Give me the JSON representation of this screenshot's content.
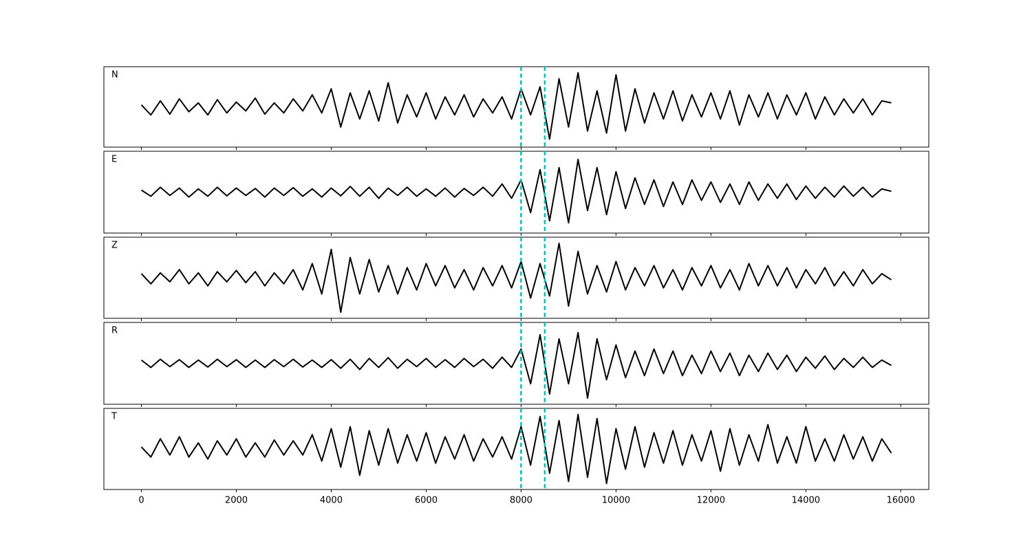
{
  "chart_data": {
    "type": "line",
    "x": [
      0,
      200,
      400,
      600,
      800,
      1000,
      1200,
      1400,
      1600,
      1800,
      2000,
      2200,
      2400,
      2600,
      2800,
      3000,
      3200,
      3400,
      3600,
      3800,
      4000,
      4200,
      4400,
      4600,
      4800,
      5000,
      5200,
      5400,
      5600,
      5800,
      6000,
      6200,
      6400,
      6600,
      6800,
      7000,
      7200,
      7400,
      7600,
      7800,
      8000,
      8200,
      8400,
      8600,
      8800,
      9000,
      9200,
      9400,
      9600,
      9800,
      10000,
      10200,
      10400,
      10600,
      10800,
      11000,
      11200,
      11400,
      11600,
      11800,
      12000,
      12200,
      12400,
      12600,
      12800,
      13000,
      13200,
      13400,
      13600,
      13800,
      14000,
      14200,
      14400,
      14600,
      14800,
      15000,
      15200,
      15400,
      15600,
      15800
    ],
    "xlim": [
      -790,
      16590
    ],
    "xticks": [
      0,
      2000,
      4000,
      6000,
      8000,
      10000,
      12000,
      14000,
      16000
    ],
    "ylim": [
      -1,
      1
    ],
    "series": [
      {
        "name": "N",
        "color": "#000000",
        "values": [
          0.05,
          -0.2,
          0.15,
          -0.18,
          0.2,
          -0.12,
          0.1,
          -0.2,
          0.18,
          -0.15,
          0.12,
          -0.1,
          0.22,
          -0.18,
          0.1,
          -0.15,
          0.2,
          -0.1,
          0.3,
          -0.15,
          0.45,
          -0.5,
          0.35,
          -0.3,
          0.4,
          -0.35,
          0.6,
          -0.4,
          0.3,
          -0.25,
          0.35,
          -0.3,
          0.25,
          -0.2,
          0.3,
          -0.25,
          0.2,
          -0.15,
          0.25,
          -0.3,
          0.45,
          -0.2,
          0.5,
          -0.8,
          0.7,
          -0.5,
          0.85,
          -0.6,
          0.4,
          -0.65,
          0.8,
          -0.6,
          0.45,
          -0.4,
          0.35,
          -0.3,
          0.4,
          -0.35,
          0.3,
          -0.25,
          0.35,
          -0.3,
          0.4,
          -0.45,
          0.3,
          -0.25,
          0.35,
          -0.3,
          0.3,
          -0.2,
          0.35,
          -0.3,
          0.25,
          -0.2,
          0.2,
          -0.15,
          0.2,
          -0.2,
          0.15,
          0.1
        ]
      },
      {
        "name": "E",
        "color": "#000000",
        "values": [
          0.05,
          -0.1,
          0.12,
          -0.08,
          0.1,
          -0.12,
          0.08,
          -0.1,
          0.12,
          -0.09,
          0.1,
          -0.08,
          0.09,
          -0.12,
          0.1,
          -0.08,
          0.11,
          -0.1,
          0.08,
          -0.12,
          0.1,
          -0.09,
          0.14,
          -0.1,
          0.12,
          -0.15,
          0.1,
          -0.08,
          0.12,
          -0.1,
          0.08,
          -0.1,
          0.1,
          -0.12,
          0.09,
          -0.08,
          0.12,
          -0.1,
          0.2,
          -0.15,
          0.3,
          -0.5,
          0.55,
          -0.7,
          0.6,
          -0.75,
          0.8,
          -0.45,
          0.6,
          -0.55,
          0.5,
          -0.4,
          0.35,
          -0.3,
          0.3,
          -0.35,
          0.25,
          -0.3,
          0.3,
          -0.2,
          0.25,
          -0.25,
          0.2,
          -0.3,
          0.25,
          -0.2,
          0.2,
          -0.15,
          0.2,
          -0.18,
          0.15,
          -0.15,
          0.12,
          -0.12,
          0.15,
          -0.1,
          0.12,
          -0.12,
          0.08,
          0.02
        ]
      },
      {
        "name": "Z",
        "color": "#000000",
        "values": [
          0.1,
          -0.15,
          0.12,
          -0.1,
          0.2,
          -0.15,
          0.12,
          -0.2,
          0.15,
          -0.1,
          0.18,
          -0.12,
          0.15,
          -0.2,
          0.12,
          -0.15,
          0.2,
          -0.3,
          0.35,
          -0.4,
          0.7,
          -0.85,
          0.5,
          -0.4,
          0.45,
          -0.35,
          0.3,
          -0.4,
          0.25,
          -0.3,
          0.35,
          -0.2,
          0.3,
          -0.25,
          0.2,
          -0.3,
          0.25,
          -0.2,
          0.3,
          -0.25,
          0.4,
          -0.5,
          0.35,
          -0.45,
          0.85,
          -0.7,
          0.65,
          -0.4,
          0.3,
          -0.35,
          0.4,
          -0.3,
          0.25,
          -0.2,
          0.3,
          -0.25,
          0.2,
          -0.3,
          0.25,
          -0.2,
          0.3,
          -0.25,
          0.2,
          -0.3,
          0.35,
          -0.2,
          0.3,
          -0.2,
          0.25,
          -0.25,
          0.2,
          -0.15,
          0.25,
          -0.2,
          0.15,
          -0.2,
          0.2,
          -0.15,
          0.1,
          -0.05
        ]
      },
      {
        "name": "R",
        "color": "#000000",
        "values": [
          0.08,
          -0.1,
          0.1,
          -0.08,
          0.09,
          -0.1,
          0.08,
          -0.09,
          0.1,
          -0.08,
          0.09,
          -0.1,
          0.08,
          -0.1,
          0.09,
          -0.08,
          0.1,
          -0.09,
          0.08,
          -0.1,
          0.09,
          -0.12,
          0.1,
          -0.15,
          0.12,
          -0.1,
          0.14,
          -0.12,
          0.1,
          -0.08,
          0.12,
          -0.1,
          0.09,
          -0.1,
          0.12,
          -0.08,
          0.1,
          -0.12,
          0.15,
          -0.1,
          0.35,
          -0.5,
          0.7,
          -0.75,
          0.6,
          -0.5,
          0.75,
          -0.85,
          0.6,
          -0.4,
          0.45,
          -0.35,
          0.3,
          -0.3,
          0.35,
          -0.25,
          0.3,
          -0.3,
          0.2,
          -0.25,
          0.3,
          -0.2,
          0.25,
          -0.3,
          0.2,
          -0.2,
          0.25,
          -0.15,
          0.2,
          -0.2,
          0.15,
          -0.12,
          0.18,
          -0.15,
          0.12,
          -0.1,
          0.15,
          -0.1,
          0.08,
          -0.05
        ]
      },
      {
        "name": "T",
        "color": "#000000",
        "values": [
          0.05,
          -0.2,
          0.25,
          -0.15,
          0.3,
          -0.2,
          0.15,
          -0.25,
          0.2,
          -0.15,
          0.25,
          -0.2,
          0.15,
          -0.2,
          0.22,
          -0.15,
          0.2,
          -0.15,
          0.35,
          -0.3,
          0.5,
          -0.45,
          0.55,
          -0.65,
          0.45,
          -0.4,
          0.5,
          -0.35,
          0.35,
          -0.3,
          0.4,
          -0.35,
          0.3,
          -0.25,
          0.35,
          -0.3,
          0.25,
          -0.2,
          0.3,
          -0.25,
          0.55,
          -0.4,
          0.8,
          -0.6,
          0.7,
          -0.8,
          0.85,
          -0.7,
          0.75,
          -0.85,
          0.5,
          -0.5,
          0.55,
          -0.45,
          0.4,
          -0.35,
          0.45,
          -0.4,
          0.35,
          -0.3,
          0.45,
          -0.55,
          0.5,
          -0.4,
          0.35,
          -0.3,
          0.6,
          -0.35,
          0.3,
          -0.35,
          0.55,
          -0.3,
          0.25,
          -0.3,
          0.35,
          -0.25,
          0.3,
          -0.3,
          0.25,
          -0.1
        ]
      }
    ],
    "vlines": {
      "values": [
        8000,
        8500
      ],
      "color": "#00bfbf"
    }
  }
}
